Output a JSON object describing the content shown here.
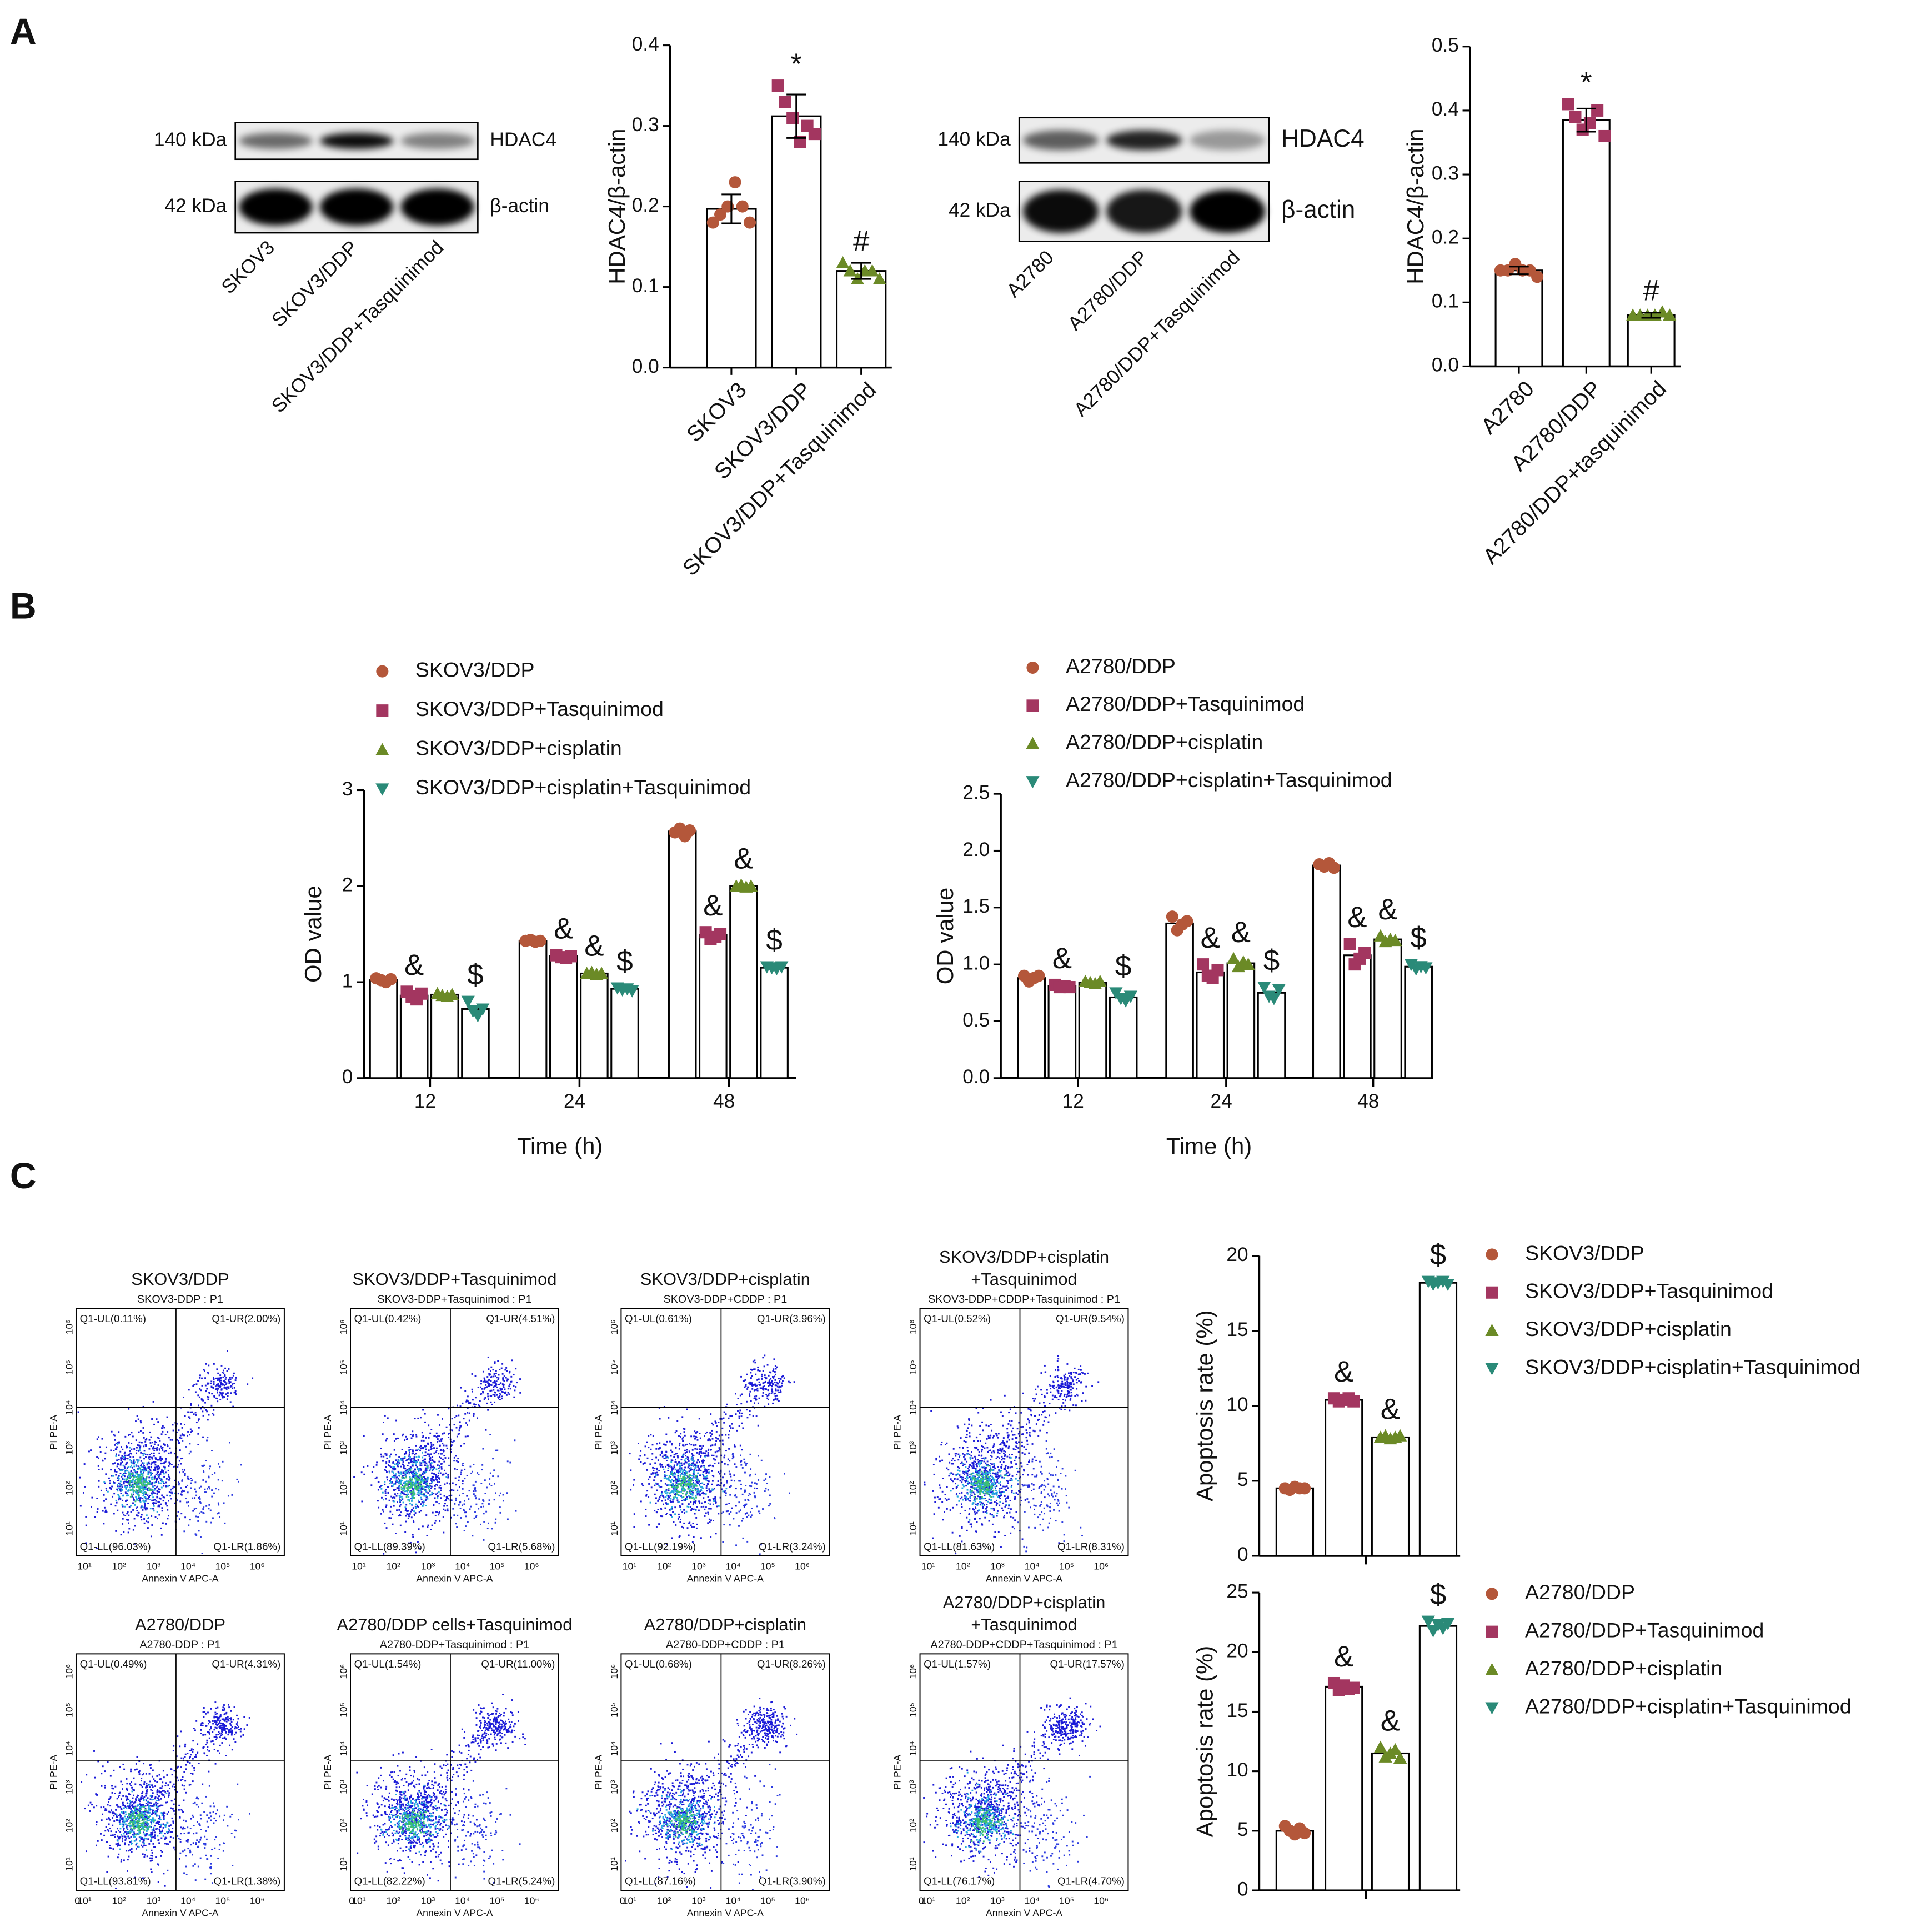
{
  "panel_labels": [
    "A",
    "B",
    "C"
  ],
  "western_blots": [
    {
      "bands": [
        {
          "size": "140 kDa",
          "protein": "HDAC4"
        },
        {
          "size": "42 kDa",
          "protein": "β-actin"
        }
      ],
      "lanes": [
        "SKOV3",
        "SKOV3/DDP",
        "SKOV3/DDP+Tasquinimod"
      ]
    },
    {
      "bands": [
        {
          "size": "140 kDa",
          "protein": "HDAC4"
        },
        {
          "size": "42 kDa",
          "protein": "β-actin"
        }
      ],
      "lanes": [
        "A2780",
        "A2780/DDP",
        "A2780/DDP+Tasquinimod"
      ]
    }
  ],
  "chart_data": [
    {
      "type": "bar",
      "y_label": "HDAC4/β-actin",
      "categories": [
        "SKOV3",
        "SKOV3/DDP",
        "SKOV3/DDP+Tasquinimod"
      ],
      "values": [
        0.197,
        0.312,
        0.12
      ],
      "errors": [
        0.018,
        0.027,
        0.01
      ],
      "points": [
        [
          0.18,
          0.19,
          0.2,
          0.23,
          0.2,
          0.18
        ],
        [
          0.35,
          0.33,
          0.31,
          0.28,
          0.3,
          0.29
        ],
        [
          0.13,
          0.12,
          0.11,
          0.12,
          0.12,
          0.11
        ]
      ],
      "annotations": [
        null,
        "*",
        "#"
      ],
      "bar_color": "#ffffff",
      "point_colors": [
        "#b4573a",
        "#a33660",
        "#6b8a26"
      ],
      "markers": [
        "circle",
        "square",
        "triangle"
      ],
      "ylim": [
        0,
        0.4
      ],
      "yticks": [
        {
          "value": 0,
          "label": "0.0"
        },
        0.1,
        0.2,
        0.3,
        0.4
      ]
    },
    {
      "type": "bar",
      "y_label": "HDAC4/β-actin",
      "categories": [
        "A2780",
        "A2780/DDP",
        "A2780/DDP+tasquinimod"
      ],
      "values": [
        0.15,
        0.385,
        0.08
      ],
      "errors": [
        0.006,
        0.018,
        0.004
      ],
      "points": [
        [
          0.15,
          0.15,
          0.16,
          0.15,
          0.15,
          0.14
        ],
        [
          0.41,
          0.39,
          0.37,
          0.38,
          0.4,
          0.36
        ],
        [
          0.08,
          0.08,
          0.08,
          0.08,
          0.085,
          0.08
        ]
      ],
      "annotations": [
        null,
        "*",
        "#"
      ],
      "bar_color": "#ffffff",
      "point_colors": [
        "#b4573a",
        "#a33660",
        "#6b8a26"
      ],
      "markers": [
        "circle",
        "square",
        "triangle"
      ],
      "ylim": [
        0,
        0.5
      ],
      "yticks": [
        {
          "value": 0,
          "label": "0.0"
        },
        0.1,
        0.2,
        0.3,
        0.4,
        0.5
      ]
    },
    {
      "type": "bar",
      "y_label": "OD value",
      "x_label": "Time (h)",
      "categories": [
        "12",
        "24",
        "48"
      ],
      "bar_color": "#ffffff",
      "series": [
        {
          "name": "SKOV3/DDP",
          "color": "#b4573a",
          "marker": "circle",
          "values": [
            1.02,
            1.43,
            2.57
          ],
          "points": [
            [
              1.04,
              1.02,
              1.0,
              1.03
            ],
            [
              1.43,
              1.44,
              1.42,
              1.43
            ],
            [
              2.56,
              2.6,
              2.52,
              2.58
            ]
          ],
          "annotations": [
            null,
            null,
            null
          ]
        },
        {
          "name": "SKOV3/DDP+Tasquinimod",
          "color": "#a33660",
          "marker": "square",
          "values": [
            0.86,
            1.27,
            1.49
          ],
          "points": [
            [
              0.9,
              0.85,
              0.82,
              0.88
            ],
            [
              1.28,
              1.26,
              1.25,
              1.27
            ],
            [
              1.52,
              1.45,
              1.47,
              1.5
            ]
          ],
          "annotations": [
            "&",
            "&",
            "&"
          ]
        },
        {
          "name": "SKOV3/DDP+cisplatin",
          "color": "#6b8a26",
          "marker": "triangle",
          "values": [
            0.87,
            1.09,
            2.0
          ],
          "points": [
            [
              0.88,
              0.86,
              0.85,
              0.87
            ],
            [
              1.09,
              1.1,
              1.08,
              1.09
            ],
            [
              2.0,
              2.01,
              1.99,
              2.0
            ]
          ],
          "annotations": [
            null,
            "&",
            "&"
          ]
        },
        {
          "name": "SKOV3/DDP+cisplatin+Tasquinimod",
          "color": "#2a8a78",
          "marker": "triangle-down",
          "values": [
            0.72,
            0.93,
            1.15
          ],
          "points": [
            [
              0.8,
              0.7,
              0.65,
              0.72
            ],
            [
              0.94,
              0.92,
              0.93,
              0.91
            ],
            [
              1.16,
              1.15,
              1.14,
              1.16
            ]
          ],
          "annotations": [
            "$",
            "$",
            "$"
          ]
        }
      ],
      "ylim": [
        0,
        3
      ],
      "yticks": [
        0,
        1,
        2,
        3
      ]
    },
    {
      "type": "bar",
      "y_label": "OD value",
      "x_label": "Time (h)",
      "categories": [
        "12",
        "24",
        "48"
      ],
      "bar_color": "#ffffff",
      "series": [
        {
          "name": "A2780/DDP",
          "color": "#b4573a",
          "marker": "circle",
          "values": [
            0.88,
            1.36,
            1.87
          ],
          "points": [
            [
              0.9,
              0.85,
              0.88,
              0.9
            ],
            [
              1.42,
              1.3,
              1.35,
              1.38
            ],
            [
              1.88,
              1.86,
              1.89,
              1.85
            ]
          ],
          "annotations": [
            null,
            null,
            null
          ]
        },
        {
          "name": "A2780/DDP+Tasquinimod",
          "color": "#a33660",
          "marker": "square",
          "values": [
            0.81,
            0.93,
            1.08
          ],
          "points": [
            [
              0.82,
              0.8,
              0.81,
              0.8
            ],
            [
              1.0,
              0.9,
              0.88,
              0.95
            ],
            [
              1.18,
              1.0,
              1.05,
              1.1
            ]
          ],
          "annotations": [
            "&",
            "&",
            "&"
          ]
        },
        {
          "name": "A2780/DDP+cisplatin",
          "color": "#6b8a26",
          "marker": "triangle",
          "values": [
            0.84,
            1.01,
            1.22
          ],
          "points": [
            [
              0.85,
              0.84,
              0.83,
              0.85
            ],
            [
              1.05,
              0.98,
              1.02,
              1.0
            ],
            [
              1.25,
              1.2,
              1.22,
              1.21
            ]
          ],
          "annotations": [
            null,
            "&",
            "&"
          ]
        },
        {
          "name": "A2780/DDP+cisplatin+Tasquinimod",
          "color": "#2a8a78",
          "marker": "triangle-down",
          "values": [
            0.71,
            0.75,
            0.98
          ],
          "points": [
            [
              0.75,
              0.7,
              0.68,
              0.72
            ],
            [
              0.8,
              0.72,
              0.7,
              0.78
            ],
            [
              1.0,
              0.96,
              0.98,
              0.97
            ]
          ],
          "annotations": [
            "$",
            "$",
            "$"
          ]
        }
      ],
      "ylim": [
        0,
        2.5
      ],
      "yticks": [
        {
          "value": 0,
          "label": "0.0"
        },
        0.5,
        {
          "value": 1,
          "label": "1.0"
        },
        1.5,
        {
          "value": 2,
          "label": "2.0"
        },
        2.5
      ]
    },
    {
      "type": "bar",
      "y_label": "Apoptosis rate (%)",
      "categories": [
        null
      ],
      "bar_color": "#ffffff",
      "series": [
        {
          "name": "SKOV3/DDP",
          "color": "#b4573a",
          "marker": "circle",
          "values": [
            4.5
          ],
          "points": [
            [
              4.5,
              4.4,
              4.6,
              4.5,
              4.5
            ]
          ],
          "annotations": [
            null
          ]
        },
        {
          "name": "SKOV3/DDP+Tasquinimod",
          "color": "#a33660",
          "marker": "square",
          "values": [
            10.4
          ],
          "points": [
            [
              10.5,
              10.3,
              10.4,
              10.5,
              10.3
            ]
          ],
          "annotations": [
            "&"
          ]
        },
        {
          "name": "SKOV3/DDP+cisplatin",
          "color": "#6b8a26",
          "marker": "triangle",
          "values": [
            7.9
          ],
          "points": [
            [
              7.9,
              8.0,
              7.8,
              7.9,
              8.0
            ]
          ],
          "annotations": [
            "&"
          ]
        },
        {
          "name": "SKOV3/DDP+cisplatin+Tasquinimod",
          "color": "#2a8a78",
          "marker": "triangle-down",
          "values": [
            18.2
          ],
          "points": [
            [
              18.3,
              18.1,
              18.2,
              18.3,
              18.1
            ]
          ],
          "annotations": [
            "$"
          ]
        }
      ],
      "ylim": [
        0,
        20
      ],
      "yticks": [
        0,
        5,
        10,
        15,
        20
      ]
    },
    {
      "type": "bar",
      "y_label": "Apoptosis rate (%)",
      "categories": [
        null
      ],
      "bar_color": "#ffffff",
      "series": [
        {
          "name": "A2780/DDP",
          "color": "#b4573a",
          "marker": "circle",
          "values": [
            5.0
          ],
          "points": [
            [
              5.4,
              5.0,
              4.7,
              5.2,
              4.8
            ]
          ],
          "annotations": [
            null
          ]
        },
        {
          "name": "A2780/DDP+Tasquinimod",
          "color": "#a33660",
          "marker": "square",
          "values": [
            17.1
          ],
          "points": [
            [
              17.4,
              16.8,
              17.2,
              16.9,
              17.0
            ]
          ],
          "annotations": [
            "&"
          ]
        },
        {
          "name": "A2780/DDP+cisplatin",
          "color": "#6b8a26",
          "marker": "triangle",
          "values": [
            11.5
          ],
          "points": [
            [
              12.0,
              11.2,
              11.5,
              11.8,
              11.1
            ]
          ],
          "annotations": [
            "&"
          ]
        },
        {
          "name": "A2780/DDP+cisplatin+Tasquinimod",
          "color": "#2a8a78",
          "marker": "triangle-down",
          "values": [
            22.2
          ],
          "points": [
            [
              22.6,
              21.8,
              22.3,
              22.0,
              22.4
            ]
          ],
          "annotations": [
            "$"
          ]
        }
      ],
      "ylim": [
        0,
        25
      ],
      "yticks": [
        0,
        5,
        10,
        15,
        20,
        25
      ]
    }
  ],
  "flow_axes": {
    "x_label": "Annexin V APC-A",
    "y_label": "PI PE-A",
    "ticks": [
      "10¹",
      "10²",
      "10³",
      "10⁴",
      "10⁵",
      "10⁶"
    ],
    "origin_label": "0"
  },
  "flow_plots": [
    {
      "title": [
        "SKOV3/DDP"
      ],
      "gate": "SKOV3-DDP : P1",
      "ul": "Q1-UL(0.11%)",
      "ur": "Q1-UR(2.00%)",
      "ll": "Q1-LL(96.03%)",
      "lr": "Q1-LR(1.86%)"
    },
    {
      "title": [
        "SKOV3/DDP+Tasquinimod"
      ],
      "gate": "SKOV3-DDP+Tasquinimod : P1",
      "ul": "Q1-UL(0.42%)",
      "ur": "Q1-UR(4.51%)",
      "ll": "Q1-LL(89.39%)",
      "lr": "Q1-LR(5.68%)"
    },
    {
      "title": [
        "SKOV3/DDP+cisplatin"
      ],
      "gate": "SKOV3-DDP+CDDP : P1",
      "ul": "Q1-UL(0.61%)",
      "ur": "Q1-UR(3.96%)",
      "ll": "Q1-LL(92.19%)",
      "lr": "Q1-LR(3.24%)"
    },
    {
      "title": [
        "SKOV3/DDP+cisplatin",
        "+Tasquinimod"
      ],
      "gate": "SKOV3-DDP+CDDP+Tasquinimod : P1",
      "ul": "Q1-UL(0.52%)",
      "ur": "Q1-UR(9.54%)",
      "ll": "Q1-LL(81.63%)",
      "lr": "Q1-LR(8.31%)"
    },
    {
      "title": [
        "A2780/DDP"
      ],
      "gate": "A2780-DDP : P1",
      "ul": "Q1-UL(0.49%)",
      "ur": "Q1-UR(4.31%)",
      "ll": "Q1-LL(93.81%)",
      "lr": "Q1-LR(1.38%)"
    },
    {
      "title": [
        "A2780/DDP cells+Tasquinimod"
      ],
      "gate": "A2780-DDP+Tasquinimod : P1",
      "ul": "Q1-UL(1.54%)",
      "ur": "Q1-UR(11.00%)",
      "ll": "Q1-LL(82.22%)",
      "lr": "Q1-LR(5.24%)"
    },
    {
      "title": [
        "A2780/DDP+cisplatin"
      ],
      "gate": "A2780-DDP+CDDP : P1",
      "ul": "Q1-UL(0.68%)",
      "ur": "Q1-UR(8.26%)",
      "ll": "Q1-LL(87.16%)",
      "lr": "Q1-LR(3.90%)"
    },
    {
      "title": [
        "A2780/DDP+cisplatin",
        "+Tasquinimod"
      ],
      "gate": "A2780-DDP+CDDP+Tasquinimod : P1",
      "ul": "Q1-UL(1.57%)",
      "ur": "Q1-UR(17.57%)",
      "ll": "Q1-LL(76.17%)",
      "lr": "Q1-LR(4.70%)"
    }
  ]
}
